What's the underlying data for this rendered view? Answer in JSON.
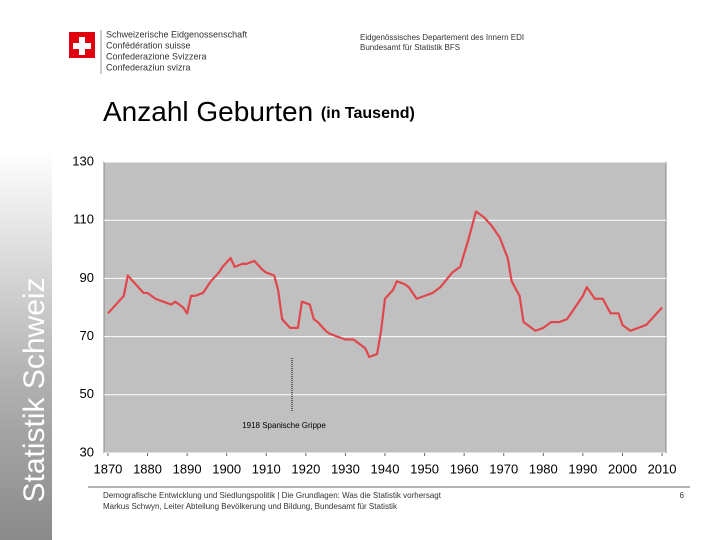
{
  "header": {
    "confederation": [
      "Schweizerische Eidgenossenschaft",
      "Confédération suisse",
      "Confederazione Svizzera",
      "Confederaziun svizra"
    ],
    "department": [
      "Eidgenössisches Departement des Innern EDI",
      "Bundesamt für Statistik BFS"
    ],
    "side_label": "Statistik Schweiz"
  },
  "chart_data": {
    "type": "line",
    "title": "Anzahl Geburten",
    "subtitle": "(in Tausend)",
    "x": [
      1870,
      1872,
      1874,
      1875,
      1877,
      1879,
      1880,
      1882,
      1884,
      1886,
      1887,
      1889,
      1890,
      1891,
      1892,
      1894,
      1896,
      1898,
      1899,
      1901,
      1902,
      1904,
      1905,
      1907,
      1909,
      1910,
      1912,
      1913,
      1914,
      1916,
      1918,
      1919,
      1921,
      1922,
      1923,
      1925,
      1926,
      1928,
      1930,
      1932,
      1933,
      1935,
      1936,
      1938,
      1939,
      1940,
      1942,
      1943,
      1945,
      1946,
      1948,
      1950,
      1952,
      1954,
      1957,
      1959,
      1961,
      1963,
      1965,
      1967,
      1969,
      1971,
      1972,
      1974,
      1975,
      1977,
      1978,
      1980,
      1982,
      1984,
      1986,
      1988,
      1990,
      1991,
      1993,
      1995,
      1997,
      1999,
      2000,
      2002,
      2004,
      2006,
      2008,
      2010
    ],
    "series": [
      {
        "name": "Geburten",
        "color": "#e0474c",
        "values": [
          78,
          81,
          84,
          91,
          88,
          85,
          85,
          83,
          82,
          81,
          82,
          80,
          78,
          84,
          84,
          85,
          89,
          92,
          94,
          97,
          94,
          95,
          95,
          96,
          93,
          92,
          91,
          86,
          76,
          73,
          73,
          82,
          81,
          76,
          75,
          72,
          71,
          70,
          69,
          69,
          68,
          66,
          63,
          64,
          72,
          83,
          86,
          89,
          88,
          87,
          83,
          84,
          85,
          87,
          92,
          94,
          103,
          113,
          111,
          108,
          104,
          97,
          89,
          84,
          75,
          73,
          72,
          73,
          75,
          75,
          76,
          80,
          84,
          87,
          83,
          83,
          78,
          78,
          74,
          72,
          73,
          74,
          77,
          80
        ]
      }
    ],
    "xlim": [
      1869,
      2011
    ],
    "ylim": [
      30,
      130
    ],
    "xticks": [
      1870,
      1880,
      1890,
      1900,
      1910,
      1920,
      1930,
      1940,
      1950,
      1960,
      1970,
      1980,
      1990,
      2000,
      2010
    ],
    "yticks": [
      30,
      50,
      70,
      90,
      110,
      130
    ],
    "grid": true,
    "background": "#c0c0c0",
    "annotation": "1918 Spanische Grippe"
  },
  "footer": {
    "lines": [
      "Demografische Entwicklung und Siedlungspolitik | Die Grundlagen: Was die Statistik vorhersagt",
      "Markus Schwyn, Leiter Abteilung Bevölkerung und Bildung, Bundesamt für Statistik"
    ],
    "page": "6"
  }
}
